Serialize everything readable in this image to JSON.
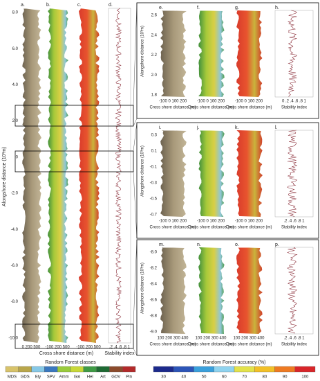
{
  "overview": {
    "panels": [
      "a.",
      "b.",
      "c.",
      "d."
    ],
    "y_label": "Alongshore distance (10³m)",
    "yticks": [
      "8.0",
      "6.0",
      "4.0",
      "2.0",
      "0",
      "-2.0",
      "-4.0",
      "-6.0",
      "-8.0",
      "-10.0"
    ],
    "xticks": [
      "0  200  500",
      "-100  200  500",
      "-100  200  500",
      ".2 .4 .6 .8 1"
    ],
    "x_label": "Cross shore distance (m)",
    "stability_label": "Stability index"
  },
  "rows": [
    {
      "panels": [
        "e.",
        "f.",
        "g.",
        "h."
      ],
      "y_label": "Alongshore distance (10³m)",
      "yticks": [
        "2.6",
        "2.4",
        "2.2",
        "2.0",
        "1.8"
      ],
      "xticks": [
        "-100 0 100 200",
        "-100 0 100 200",
        "-100 0 100 200",
        "0 .2 .4 .6 .8 1"
      ],
      "x_label": "Cross shore distance (m)",
      "stability_label": "Stability index"
    },
    {
      "panels": [
        "i.",
        "j.",
        "k.",
        "l."
      ],
      "y_label": "Alongshore distance (10³m)",
      "yticks": [
        "0.3",
        "0.1",
        "-0.1",
        "-0.3",
        "-0.5",
        "-0.7"
      ],
      "xticks": [
        "-100 0 100 200",
        "-100 0 100 200",
        "-100 0 100 200",
        ".2 .4 .6 .8 1"
      ],
      "x_label": "Cross shore distance (m)",
      "stability_label": "Stability index"
    },
    {
      "panels": [
        "m.",
        "n.",
        "o.",
        "p."
      ],
      "y_label": "Alongshore distance (10³m)",
      "yticks": [
        "-8.0",
        "-8.2",
        "-8.4",
        "-8.6",
        "-8.8",
        "-9.0"
      ],
      "xticks": [
        "100 200 300 400",
        "100 200 300 400",
        "100 200 300 400",
        ".2 .4 .6 .8 1"
      ],
      "x_label": "Cross shore distance (m)",
      "stability_label": "Stability index"
    }
  ],
  "class_legend": {
    "title": "Random Forest classes",
    "items": [
      {
        "label": "MDS",
        "color": "#d8c36a"
      },
      {
        "label": "GDS",
        "color": "#b9a64a"
      },
      {
        "label": "Ely",
        "color": "#86c8e6"
      },
      {
        "label": "SPV",
        "color": "#3a78bf"
      },
      {
        "label": "Amm",
        "color": "#9acb3c"
      },
      {
        "label": "Gal",
        "color": "#c8d838"
      },
      {
        "label": "Hel",
        "color": "#3f9b45"
      },
      {
        "label": "Art",
        "color": "#1f6a33"
      },
      {
        "label": "GDV",
        "color": "#8b4b2b"
      },
      {
        "label": "Pin",
        "color": "#b32a2a"
      }
    ]
  },
  "accuracy_legend": {
    "title": "Random Forest accuracy (%)",
    "items": [
      {
        "label": "30",
        "color": "#1c2a8c"
      },
      {
        "label": "40",
        "color": "#2c55b8"
      },
      {
        "label": "50",
        "color": "#3aa0dc"
      },
      {
        "label": "60",
        "color": "#8fd3ef"
      },
      {
        "label": "70",
        "color": "#e3e24a"
      },
      {
        "label": "80",
        "color": "#f2c027"
      },
      {
        "label": "90",
        "color": "#ee7a22"
      },
      {
        "label": "100",
        "color": "#d8262a"
      }
    ]
  }
}
